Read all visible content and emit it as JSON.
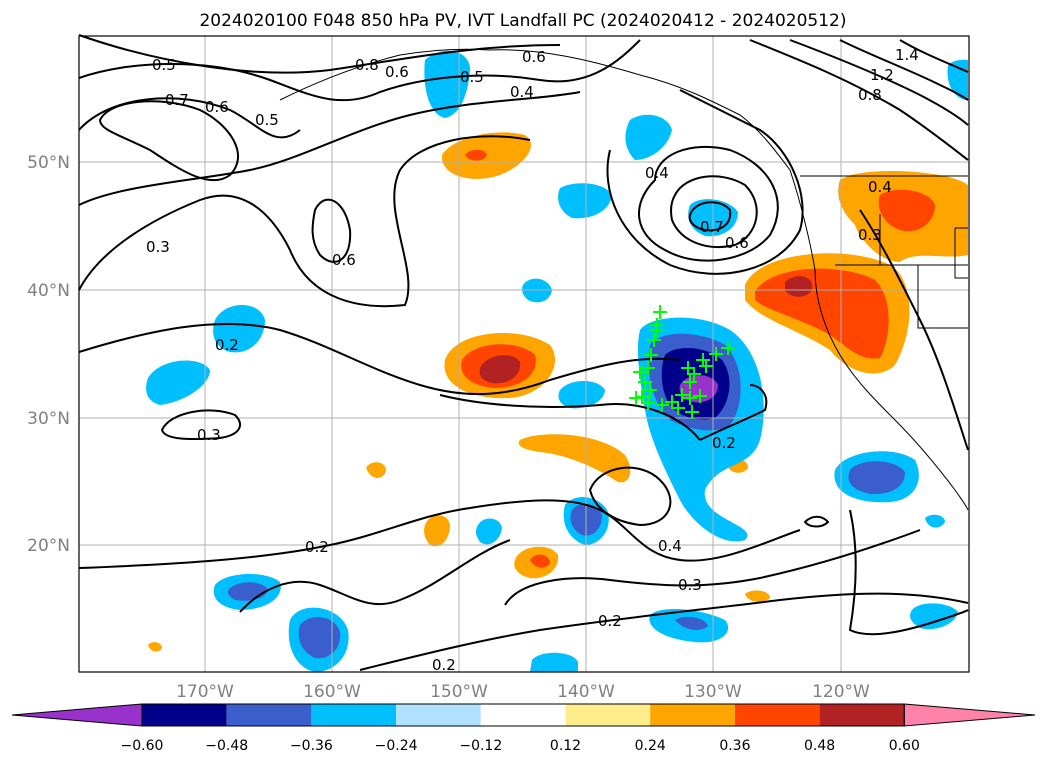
{
  "title": "2024020100 F048 850 hPa PV, IVT Landfall PC (2024020412 - 2024020512)",
  "lat_labels": [
    "50°N",
    "40°N",
    "30°N",
    "20°N"
  ],
  "lon_labels": [
    "170°W",
    "160°W",
    "150°W",
    "140°W",
    "130°W",
    "120°W"
  ],
  "colorbar": {
    "tick_labels": [
      "−0.60",
      "−0.48",
      "−0.36",
      "−0.24",
      "−0.12",
      "0.12",
      "0.24",
      "0.36",
      "0.48",
      "0.60"
    ],
    "colors": [
      "#9932cc",
      "#00008b",
      "#3a5fcd",
      "#00bfff",
      "#b0e2ff",
      "#ffffff",
      "#ffec8b",
      "#ffa500",
      "#ff4500",
      "#b22222",
      "#ff82ab"
    ]
  },
  "contour_labels": [
    "0.5",
    "0.7",
    "0.6",
    "0.5",
    "0.8",
    "0.6",
    "0.5",
    "0.6",
    "0.4",
    "0.4",
    "0.7",
    "0.6",
    "0.3",
    "0.6",
    "0.2",
    "0.3",
    "0.2",
    "0.2",
    "0.4",
    "0.3",
    "0.2",
    "0.2",
    "1.4",
    "1.2",
    "0.8",
    "0.4",
    "0.3"
  ],
  "marker_color": "#00ff00",
  "marker_count": 26
}
